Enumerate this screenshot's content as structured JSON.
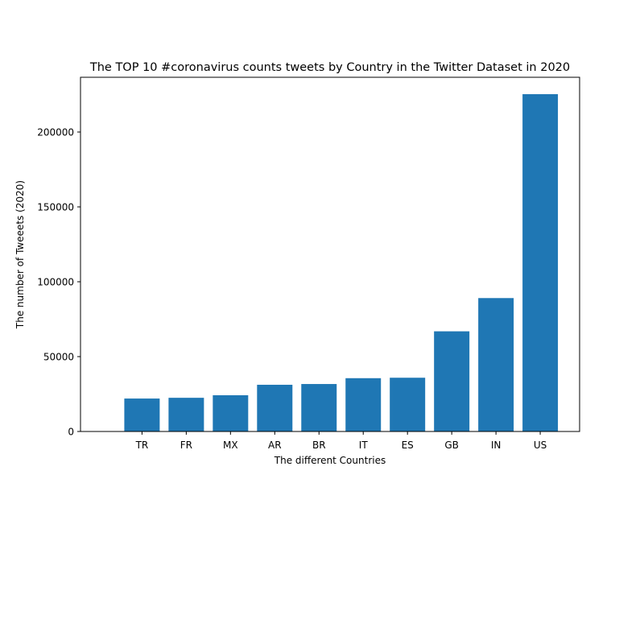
{
  "chart_data": {
    "type": "bar",
    "title": "The TOP 10 #coronavirus counts tweets by Country in the Twitter Dataset in 2020",
    "xlabel": "The different Countries",
    "ylabel": "The number of Tweeets (2020)",
    "categories": [
      "TR",
      "FR",
      "MX",
      "AR",
      "BR",
      "IT",
      "ES",
      "GB",
      "IN",
      "US"
    ],
    "values": [
      22000,
      22500,
      24200,
      31200,
      31700,
      35600,
      35900,
      66900,
      89100,
      225300
    ],
    "ylim": [
      0,
      236565
    ],
    "yticks": [
      0,
      50000,
      100000,
      150000,
      200000
    ],
    "ytick_labels": [
      "0",
      "50000",
      "100000",
      "150000",
      "200000"
    ],
    "bar_color": "#1f77b4",
    "grid": false,
    "legend": "none"
  }
}
